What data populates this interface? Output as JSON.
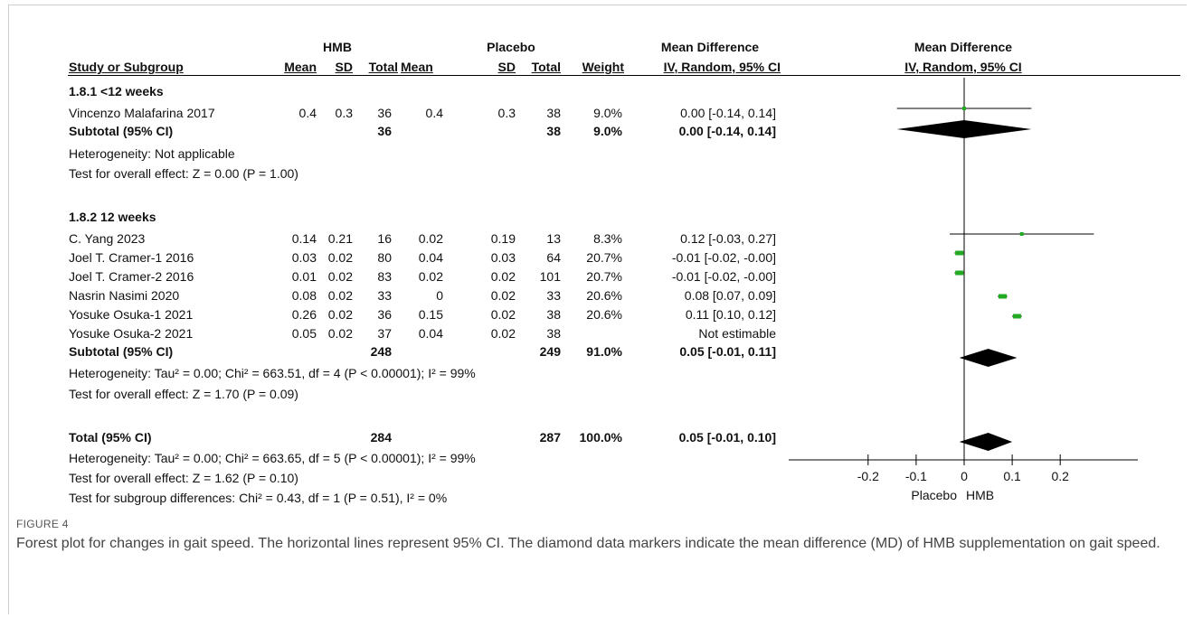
{
  "headers": {
    "study": "Study or Subgroup",
    "hmb": "HMB",
    "placebo": "Placebo",
    "md_group": "Mean Difference",
    "md_group_plot": "Mean Difference",
    "mean": "Mean",
    "sd": "SD",
    "total": "Total",
    "weight": "Weight",
    "method": "IV, Random, 95% CI",
    "method_plot": "IV, Random, 95% CI"
  },
  "subgroup1": {
    "title": "1.8.1 <12 weeks",
    "studies": [
      {
        "name": "Vincenzo Malafarina 2017",
        "hmb_mean": "0.4",
        "hmb_sd": "0.3",
        "hmb_total": "36",
        "pl_mean": "0.4",
        "pl_sd": "0.3",
        "pl_total": "38",
        "weight": "9.0%",
        "ci": "0.00 [-0.14, 0.14]"
      }
    ],
    "subtotal": {
      "label": "Subtotal (95% CI)",
      "hmb_total": "36",
      "pl_total": "38",
      "weight": "9.0%",
      "ci": "0.00 [-0.14, 0.14]"
    },
    "heterogeneity": "Heterogeneity: Not applicable",
    "overall": "Test for overall effect: Z = 0.00 (P = 1.00)"
  },
  "subgroup2": {
    "title": "1.8.2 12 weeks",
    "studies": [
      {
        "name": "C. Yang 2023",
        "hmb_mean": "0.14",
        "hmb_sd": "0.21",
        "hmb_total": "16",
        "pl_mean": "0.02",
        "pl_sd": "0.19",
        "pl_total": "13",
        "weight": "8.3%",
        "ci": "0.12 [-0.03, 0.27]"
      },
      {
        "name": "Joel T. Cramer-1 2016",
        "hmb_mean": "0.03",
        "hmb_sd": "0.02",
        "hmb_total": "80",
        "pl_mean": "0.04",
        "pl_sd": "0.03",
        "pl_total": "64",
        "weight": "20.7%",
        "ci": "-0.01 [-0.02, -0.00]"
      },
      {
        "name": "Joel T. Cramer-2 2016",
        "hmb_mean": "0.01",
        "hmb_sd": "0.02",
        "hmb_total": "83",
        "pl_mean": "0.02",
        "pl_sd": "0.02",
        "pl_total": "101",
        "weight": "20.7%",
        "ci": "-0.01 [-0.02, -0.00]"
      },
      {
        "name": "Nasrin Nasimi 2020",
        "hmb_mean": "0.08",
        "hmb_sd": "0.02",
        "hmb_total": "33",
        "pl_mean": "0",
        "pl_sd": "0.02",
        "pl_total": "33",
        "weight": "20.6%",
        "ci": "0.08 [0.07, 0.09]"
      },
      {
        "name": "Yosuke Osuka-1 2021",
        "hmb_mean": "0.26",
        "hmb_sd": "0.02",
        "hmb_total": "36",
        "pl_mean": "0.15",
        "pl_sd": "0.02",
        "pl_total": "38",
        "weight": "20.6%",
        "ci": "0.11 [0.10, 0.12]"
      },
      {
        "name": "Yosuke Osuka-2 2021",
        "hmb_mean": "0.05",
        "hmb_sd": "0.02",
        "hmb_total": "37",
        "pl_mean": "0.04",
        "pl_sd": "0.02",
        "pl_total": "38",
        "weight": "",
        "ci": "Not estimable"
      }
    ],
    "subtotal": {
      "label": "Subtotal (95% CI)",
      "hmb_total": "248",
      "pl_total": "249",
      "weight": "91.0%",
      "ci": "0.05 [-0.01, 0.11]"
    },
    "heterogeneity": "Heterogeneity: Tau² = 0.00; Chi² = 663.51, df = 4 (P < 0.00001); I² = 99%",
    "overall": "Test for overall effect: Z = 1.70 (P = 0.09)"
  },
  "total": {
    "label": "Total (95% CI)",
    "hmb_total": "284",
    "pl_total": "287",
    "weight": "100.0%",
    "ci": "0.05 [-0.01, 0.10]",
    "heterogeneity": "Heterogeneity: Tau² = 0.00; Chi² = 663.65, df = 5 (P < 0.00001); I² = 99%",
    "overall": "Test for overall effect: Z = 1.62 (P = 0.10)",
    "subgroup_diff": "Test for subgroup differences: Chi² = 0.43, df = 1 (P = 0.51), I² = 0%"
  },
  "caption": {
    "label": "FIGURE 4",
    "text": "Forest plot for changes in gait speed. The horizontal lines represent 95% CI. The diamond data markers indicate the mean difference (MD) of HMB supplementation on gait speed."
  },
  "chart_data": {
    "type": "forest",
    "x_ticks": [
      "-0.2",
      "-0.1",
      "0",
      "0.1",
      "0.2"
    ],
    "xlim": [
      -0.22,
      0.22
    ],
    "favours_left": "Placebo",
    "favours_right": "HMB",
    "square_color": "#22aa22",
    "studies": [
      {
        "name": "Vincenzo Malafarina 2017",
        "md": 0.0,
        "lo": -0.14,
        "hi": 0.14
      },
      {
        "name": "C. Yang 2023",
        "md": 0.12,
        "lo": -0.03,
        "hi": 0.27
      },
      {
        "name": "Joel T. Cramer-1 2016",
        "md": -0.01,
        "lo": -0.02,
        "hi": -0.0
      },
      {
        "name": "Joel T. Cramer-2 2016",
        "md": -0.01,
        "lo": -0.02,
        "hi": -0.0
      },
      {
        "name": "Nasrin Nasimi 2020",
        "md": 0.08,
        "lo": 0.07,
        "hi": 0.09
      },
      {
        "name": "Yosuke Osuka-1 2021",
        "md": 0.11,
        "lo": 0.1,
        "hi": 0.12
      }
    ],
    "diamonds": [
      {
        "name": "Subtotal 1.8.1",
        "md": 0.0,
        "lo": -0.14,
        "hi": 0.14
      },
      {
        "name": "Subtotal 1.8.2",
        "md": 0.05,
        "lo": -0.01,
        "hi": 0.11
      },
      {
        "name": "Total",
        "md": 0.05,
        "lo": -0.01,
        "hi": 0.1
      }
    ]
  }
}
